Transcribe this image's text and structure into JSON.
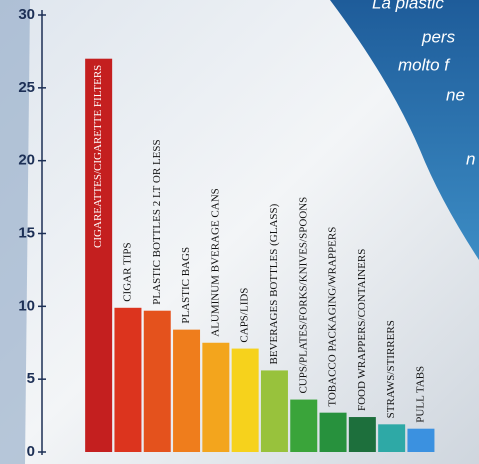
{
  "chart_data": {
    "type": "bar",
    "categories": [
      "CIGAREATTES/CIGARETTE FILTERS",
      "CIGAR TIPS",
      "PLASTIC BOTTLES 2 LT OR LESS",
      "PLASTIC BAGS",
      "ALUMINUM BVERAGE CANS",
      "CAPS/LIDS",
      "BEVERAGES BOTTLES (GLASS)",
      "CUPS/PLATES/FORKS/KNIVES/SPOONS",
      "TOBACCO PACKAGING/WRAPPERS",
      "FOOD WRAPPERS/CONTAINERS",
      "STRAWS/STIRRERS",
      "PULL TABS"
    ],
    "values": [
      27,
      9.9,
      9.7,
      8.4,
      7.5,
      7.1,
      5.6,
      3.6,
      2.7,
      2.4,
      1.9,
      1.6
    ],
    "colors": [
      "#c41f1f",
      "#dc341e",
      "#e4521d",
      "#ef7d1c",
      "#f3a51d",
      "#f6d21c",
      "#98c23c",
      "#3aa43a",
      "#27913d",
      "#1d6f3c",
      "#2ea9a6",
      "#3b91e0"
    ],
    "ylim": [
      0,
      30
    ],
    "yticks": [
      0,
      5,
      10,
      15,
      20,
      25,
      30
    ]
  },
  "overlay_text": [
    "La plastic",
    "pers",
    "molto f",
    "ne",
    "n"
  ]
}
